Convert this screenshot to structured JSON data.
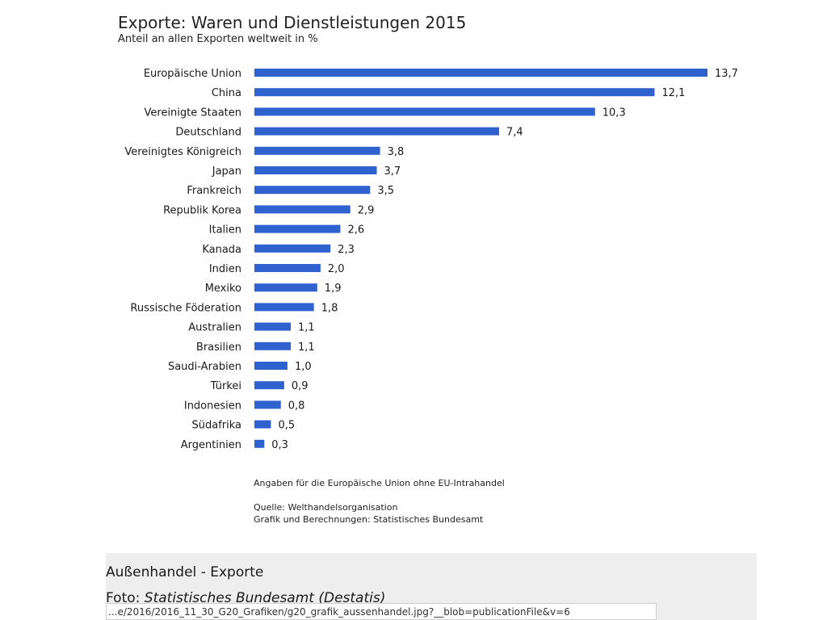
{
  "chart_data": {
    "type": "bar",
    "orientation": "horizontal",
    "title": "Exporte: Waren und Dienstleistungen 2015",
    "subtitle": "Anteil an allen Exporten weltweit in %",
    "categories": [
      "Europäische Union",
      "China",
      "Vereinigte Staaten",
      "Deutschland",
      "Vereinigtes Königreich",
      "Japan",
      "Frankreich",
      "Republik Korea",
      "Italien",
      "Kanada",
      "Indien",
      "Mexiko",
      "Russische Föderation",
      "Australien",
      "Brasilien",
      "Saudi-Arabien",
      "Türkei",
      "Indonesien",
      "Südafrika",
      "Argentinien"
    ],
    "values": [
      13.7,
      12.1,
      10.3,
      7.4,
      3.8,
      3.7,
      3.5,
      2.9,
      2.6,
      2.3,
      2.0,
      1.9,
      1.8,
      1.1,
      1.1,
      1.0,
      0.9,
      0.8,
      0.5,
      0.3
    ],
    "value_labels": [
      "13,7",
      "12,1",
      "10,3",
      "7,4",
      "3,8",
      "3,7",
      "3,5",
      "2,9",
      "2,6",
      "2,3",
      "2,0",
      "1,9",
      "1,8",
      "1,1",
      "1,1",
      "1,0",
      "0,9",
      "0,8",
      "0,5",
      "0,3"
    ],
    "xlim": [
      0,
      13.7
    ],
    "grid": false,
    "legend": "none",
    "bar_color": "#2f62cf",
    "notes": [
      "Angaben für die Europäische Union ohne EU-Intrahandel",
      "Quelle: Welthandelsorganisation",
      "Grafik und Berechnungen: Statistisches Bundesamt"
    ]
  },
  "caption": {
    "title": "Außenhandel - Exporte",
    "credit_prefix": "Foto: ",
    "credit_source": "Statistisches Bundesamt (Destatis)"
  },
  "tooltip": {
    "url": "...e/2016/2016_11_30_G20_Grafiken/g20_grafik_aussenhandel.jpg?__blob=publicationFile&v=6"
  }
}
